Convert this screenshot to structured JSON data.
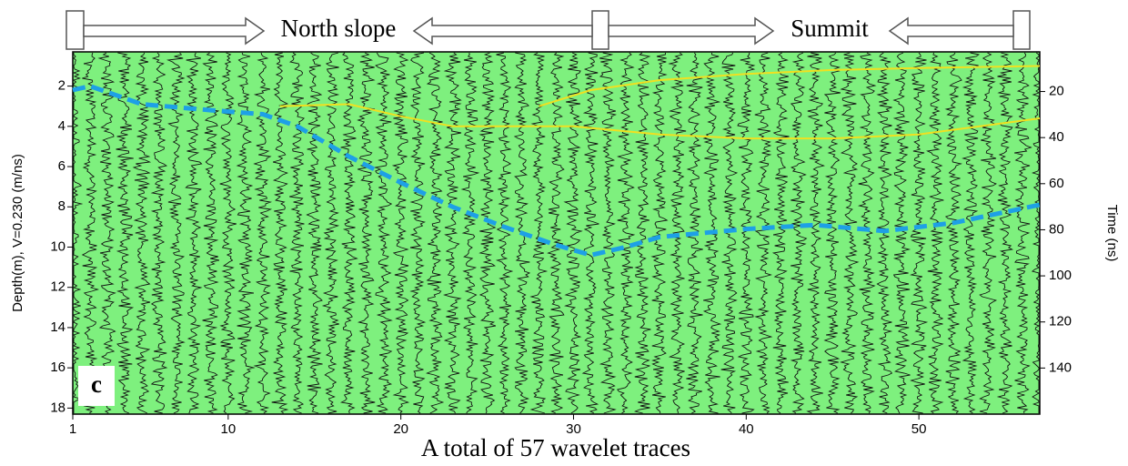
{
  "chart_data": {
    "type": "line",
    "panel_label": "c",
    "annotations": [
      "North slope",
      "Summit"
    ],
    "xlabel": "A total of 57 wavelet traces",
    "ylabel": "Depth(m), V=0.230 (m/ns)",
    "y2label": "Time (ns)",
    "xlim": [
      1,
      57
    ],
    "xticks": [
      1,
      10,
      20,
      30,
      40,
      50
    ],
    "ylim": [
      0.3,
      18.3
    ],
    "yticks": [
      2,
      4,
      6,
      8,
      10,
      12,
      14,
      16,
      18
    ],
    "y2lim": [
      2.8,
      160
    ],
    "y2ticks": [
      20,
      40,
      60,
      80,
      100,
      120,
      140
    ],
    "background": "#7ef07e",
    "series": [
      {
        "color": "#1ea0e6",
        "dashed": true,
        "x": [
          1,
          2,
          5,
          9,
          12,
          14,
          17,
          20,
          23,
          26,
          29,
          31,
          33,
          35,
          40,
          44,
          48,
          52,
          57
        ],
        "values": [
          2.2,
          2.0,
          2.9,
          3.2,
          3.4,
          4.0,
          5.5,
          6.8,
          8.0,
          9.0,
          9.9,
          10.4,
          10.0,
          9.5,
          9.1,
          8.9,
          9.2,
          8.8,
          7.9
        ]
      },
      {
        "color": "#f0e020",
        "dashed": false,
        "x": [
          13,
          17,
          20,
          23,
          30,
          35,
          40,
          45,
          50,
          57
        ],
        "values": [
          3.0,
          2.9,
          3.5,
          4.0,
          4.0,
          4.4,
          4.6,
          4.6,
          4.4,
          3.6
        ]
      },
      {
        "color": "#f0e020",
        "dashed": false,
        "x": [
          28,
          31,
          35,
          40,
          45,
          50,
          57
        ],
        "values": [
          3.0,
          2.2,
          1.7,
          1.4,
          1.2,
          1.1,
          1.0
        ]
      }
    ]
  }
}
